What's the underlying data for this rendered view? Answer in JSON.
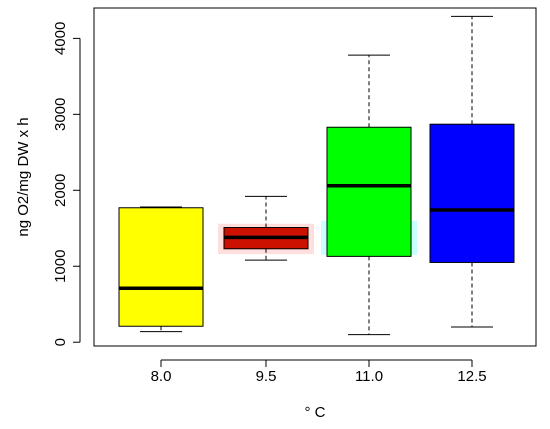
{
  "chart_data": {
    "type": "boxplot",
    "title": "",
    "xlabel": "° C",
    "ylabel": "ng O2/mg DW x h",
    "categories": [
      "8.0",
      "9.5",
      "11.0",
      "12.5"
    ],
    "y_ticks": [
      0,
      1000,
      2000,
      3000,
      4000
    ],
    "ylim": [
      -50,
      4400
    ],
    "grid": false,
    "legend": "none",
    "boxes": [
      {
        "category": "8.0",
        "color": "#ffff00",
        "whisker_low": 140,
        "q1": 210,
        "median": 710,
        "q3": 1770,
        "whisker_high": 1780
      },
      {
        "category": "9.5",
        "color": "#cc1100",
        "whisker_low": 1080,
        "q1": 1230,
        "median": 1380,
        "q3": 1510,
        "whisker_high": 1920,
        "halo": {
          "color": "#ffdede",
          "low": 1160,
          "high": 1560
        }
      },
      {
        "category": "11.0",
        "color": "#00ff00",
        "whisker_low": 100,
        "q1": 1130,
        "median": 2060,
        "q3": 2830,
        "whisker_high": 3780,
        "halo": {
          "color": "#c8ffff",
          "low": 1150,
          "high": 1600
        }
      },
      {
        "category": "12.5",
        "color": "#0000ff",
        "whisker_low": 200,
        "q1": 1050,
        "median": 1740,
        "q3": 2870,
        "whisker_high": 4290
      }
    ]
  }
}
